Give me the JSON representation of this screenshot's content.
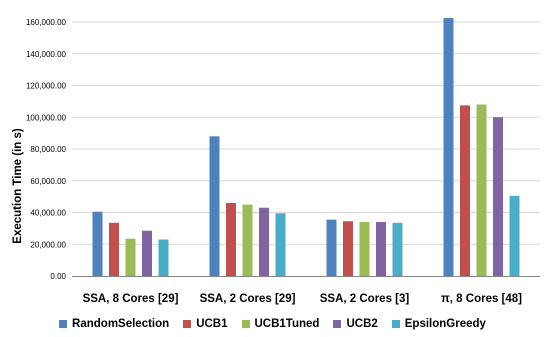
{
  "chart_data": {
    "type": "bar",
    "title": "",
    "xlabel": "",
    "ylabel": "Execution Time (in s)",
    "ylim": [
      0,
      160000
    ],
    "yticks": [
      0,
      20000,
      40000,
      60000,
      80000,
      100000,
      120000,
      140000,
      160000
    ],
    "ytick_labels": [
      "0.00",
      "20,000.00",
      "40,000.00",
      "60,000.00",
      "80,000.00",
      "100,000.00",
      "120,000.00",
      "140,000.00",
      "160,000.00"
    ],
    "grid": "horizontal",
    "legend_position": "bottom",
    "categories": [
      "SSA, 8 Cores [29]",
      "SSA, 2 Cores [29]",
      "SSA, 2 Cores [3]",
      "π, 8 Cores [48]"
    ],
    "series": [
      {
        "name": "RandomSelection",
        "color": "#4f81bd",
        "values": [
          40500,
          88000,
          35500,
          162500
        ]
      },
      {
        "name": "UCB1",
        "color": "#c0504d",
        "values": [
          33500,
          46000,
          34500,
          107500
        ]
      },
      {
        "name": "UCB1Tuned",
        "color": "#9bbb59",
        "values": [
          23500,
          45000,
          34000,
          108000
        ]
      },
      {
        "name": "UCB2",
        "color": "#8064a2",
        "values": [
          28500,
          43000,
          34000,
          100000
        ]
      },
      {
        "name": "EpsilonGreedy",
        "color": "#4bacc6",
        "values": [
          23000,
          39500,
          33500,
          50500
        ]
      }
    ]
  }
}
